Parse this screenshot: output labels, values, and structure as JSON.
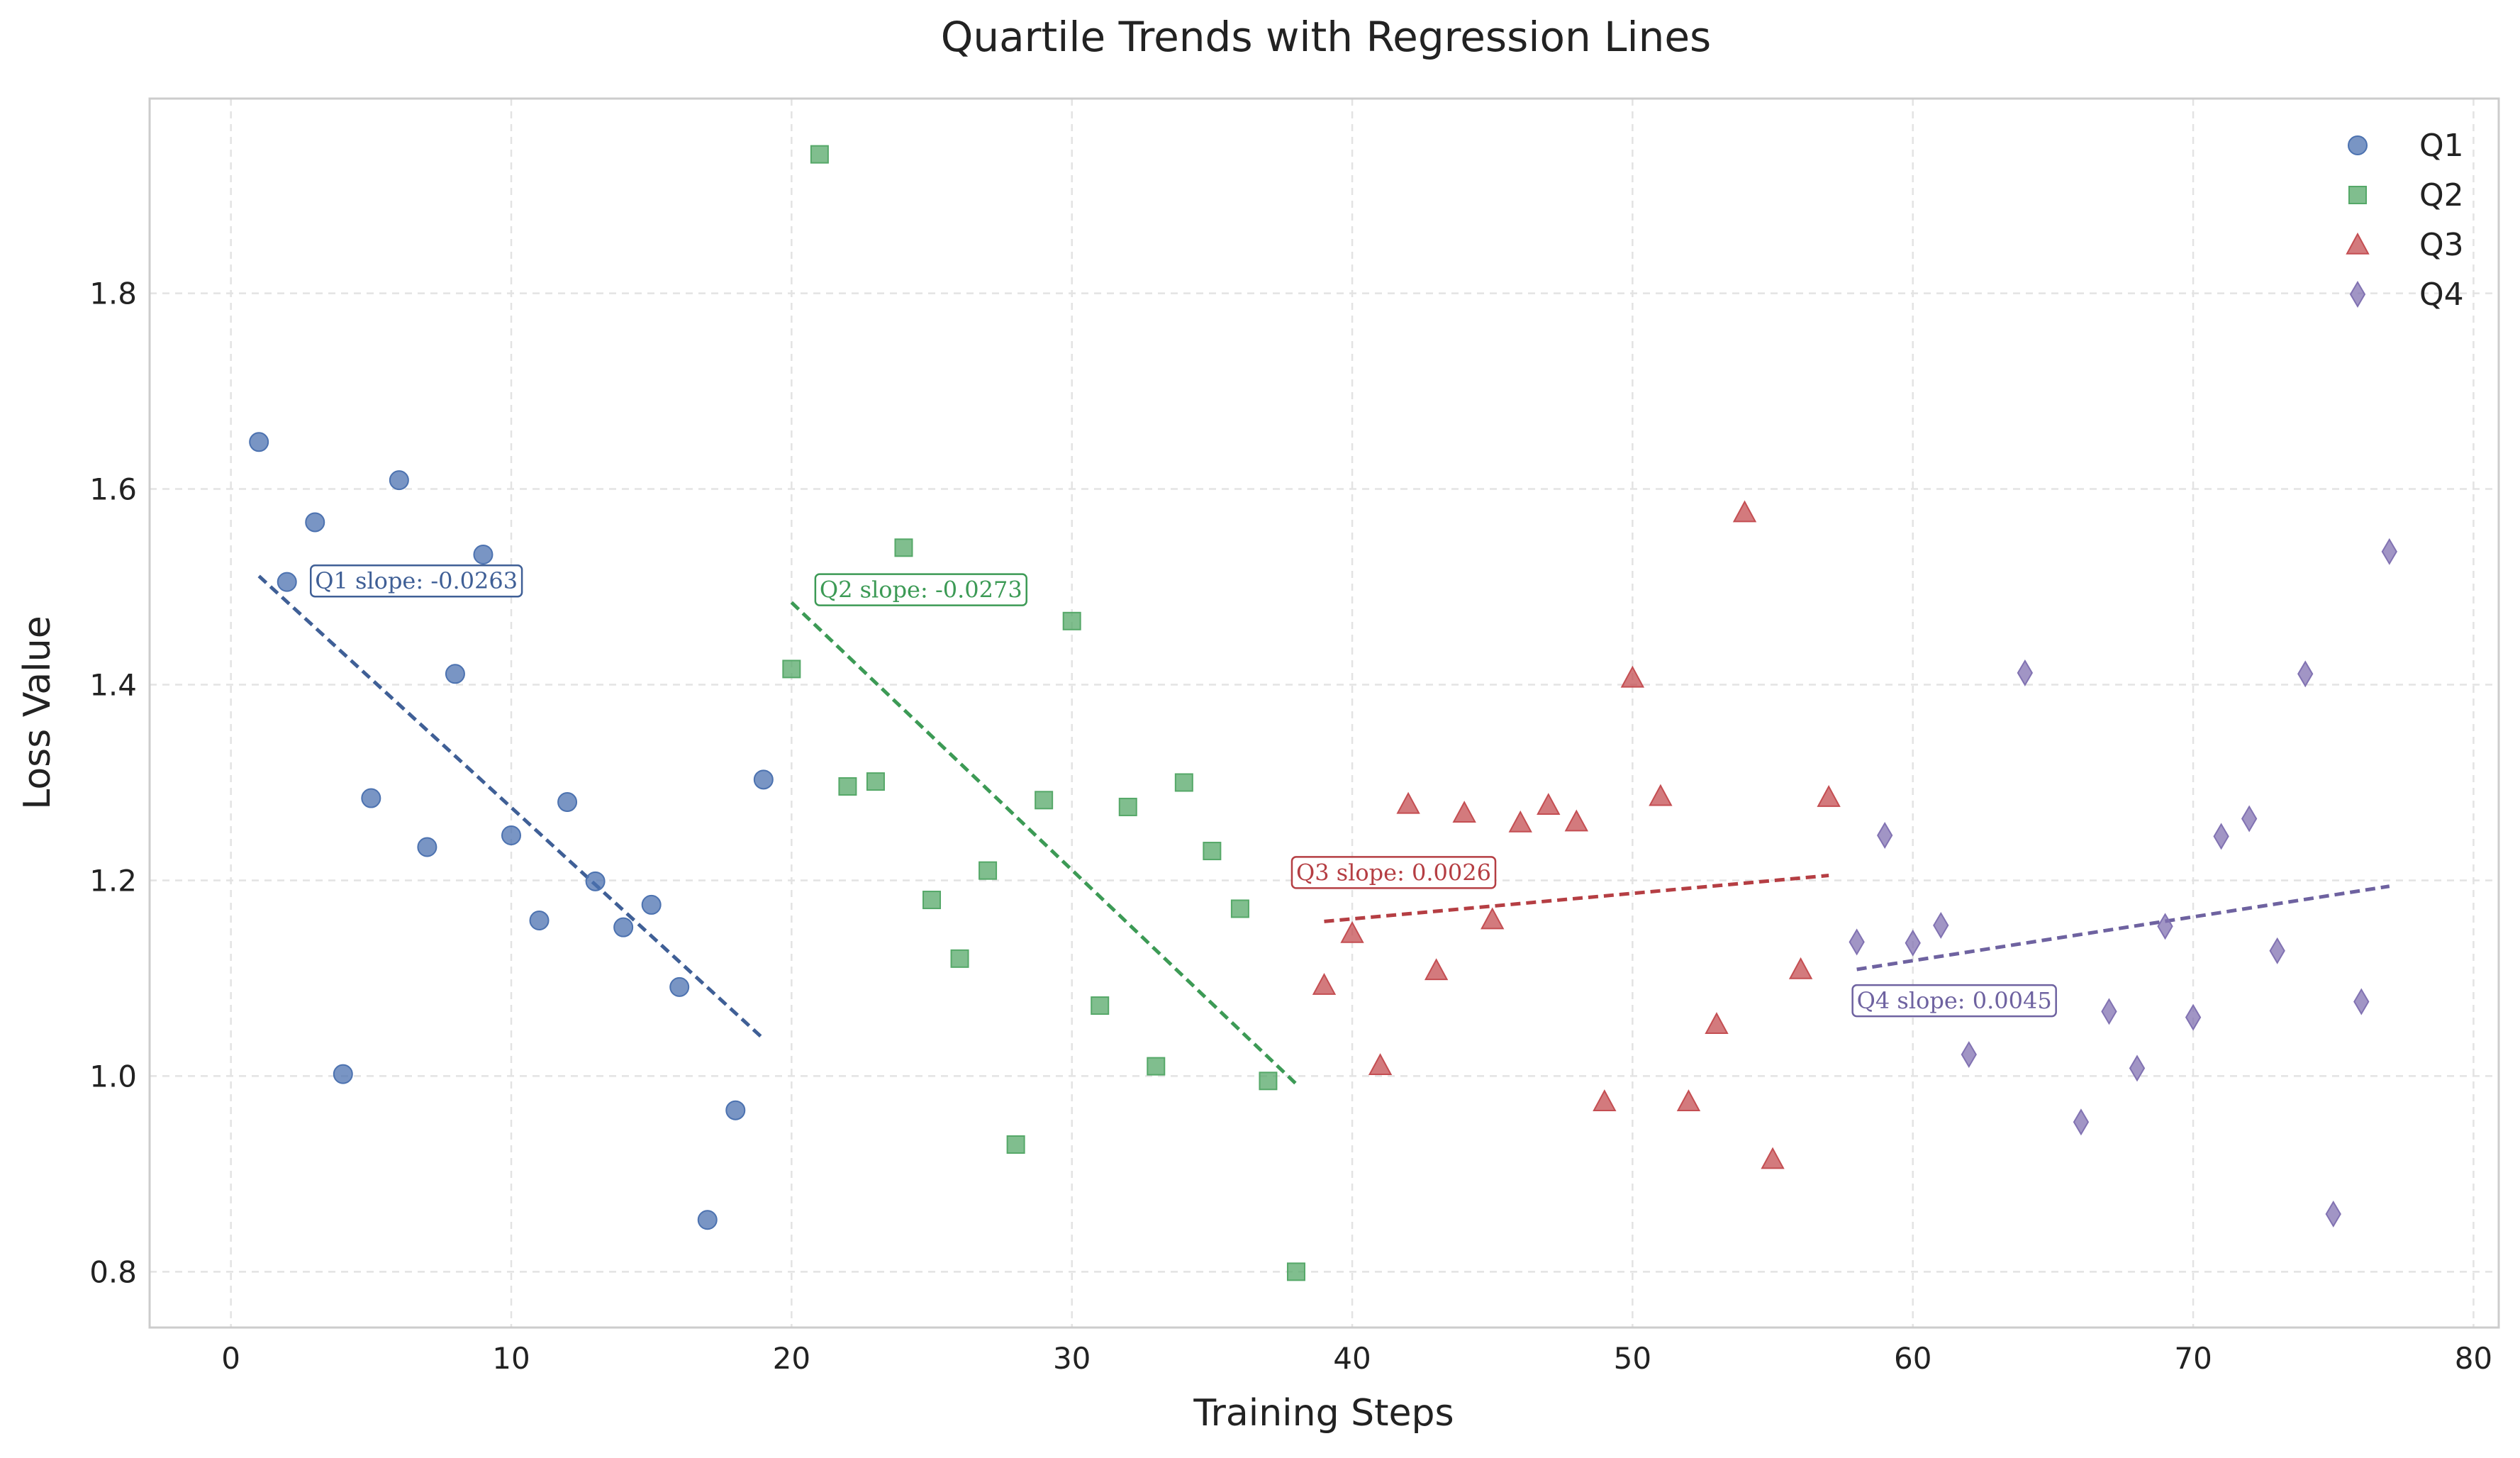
{
  "chart_data": {
    "type": "scatter",
    "title": "Quartile Trends with Regression Lines",
    "xlabel": "Training Steps",
    "ylabel": "Loss Value",
    "xlim": [
      -2.9,
      80.9
    ],
    "ylim": [
      0.743,
      1.999
    ],
    "xticks": [
      0,
      10,
      20,
      30,
      40,
      50,
      60,
      70,
      80
    ],
    "yticks": [
      0.8,
      1.0,
      1.2,
      1.4,
      1.6,
      1.8
    ],
    "grid": true,
    "legend_position": "top-right",
    "series": [
      {
        "name": "Q1",
        "marker": "circle",
        "color": "#4c72b0",
        "x": [
          1,
          2,
          3,
          4,
          5,
          6,
          7,
          8,
          9,
          10,
          11,
          12,
          13,
          14,
          15,
          16,
          17,
          18,
          19
        ],
        "y": [
          1.648,
          1.505,
          1.566,
          1.002,
          1.284,
          1.609,
          1.234,
          1.411,
          1.533,
          1.246,
          1.159,
          1.28,
          1.199,
          1.152,
          1.175,
          1.091,
          0.853,
          0.965,
          1.303
        ],
        "regression": {
          "x0": 1,
          "y0": 1.511,
          "x1": 19,
          "y1": 1.038
        },
        "annotation": {
          "text": "Q1 slope: -0.0263",
          "x": 3,
          "y": 1.506
        }
      },
      {
        "name": "Q2",
        "marker": "square",
        "color": "#55a868",
        "x": [
          20,
          21,
          22,
          23,
          24,
          25,
          26,
          27,
          28,
          29,
          30,
          31,
          32,
          33,
          34,
          35,
          36,
          37,
          38
        ],
        "y": [
          1.416,
          1.942,
          1.296,
          1.301,
          1.54,
          1.18,
          1.12,
          1.21,
          0.93,
          1.282,
          1.465,
          1.072,
          1.275,
          1.01,
          1.3,
          1.23,
          1.171,
          0.995,
          0.8
        ],
        "regression": {
          "x0": 20,
          "y0": 1.484,
          "x1": 38,
          "y1": 0.992
        },
        "annotation": {
          "text": "Q2 slope: -0.0273",
          "x": 21,
          "y": 1.497
        }
      },
      {
        "name": "Q3",
        "marker": "triangle",
        "color": "#c44e52",
        "x": [
          39,
          40,
          41,
          42,
          43,
          44,
          45,
          46,
          47,
          48,
          49,
          50,
          51,
          52,
          53,
          54,
          55,
          56,
          57
        ],
        "y": [
          1.093,
          1.146,
          1.011,
          1.278,
          1.108,
          1.269,
          1.16,
          1.259,
          1.277,
          1.26,
          0.974,
          1.407,
          1.286,
          0.974,
          1.053,
          1.576,
          0.915,
          1.109,
          1.285
        ],
        "regression": {
          "x0": 39,
          "y0": 1.158,
          "x1": 57,
          "y1": 1.205
        },
        "annotation": {
          "text": "Q3 slope: 0.0026",
          "x": 38,
          "y": 1.208
        }
      },
      {
        "name": "Q4",
        "marker": "diamond",
        "color": "#8172b2",
        "x": [
          58,
          59,
          60,
          61,
          62,
          64,
          66,
          67,
          68,
          69,
          70,
          71,
          72,
          73,
          74,
          75,
          76,
          77
        ],
        "y": [
          1.137,
          1.246,
          1.136,
          1.154,
          1.022,
          1.412,
          0.953,
          1.066,
          1.008,
          1.153,
          1.06,
          1.245,
          1.263,
          1.128,
          1.411,
          0.859,
          1.076,
          1.536
        ],
        "regression": {
          "x0": 58,
          "y0": 1.109,
          "x1": 77,
          "y1": 1.194
        },
        "annotation": {
          "text": "Q4 slope: 0.0045",
          "x": 58,
          "y": 1.077
        }
      }
    ]
  }
}
